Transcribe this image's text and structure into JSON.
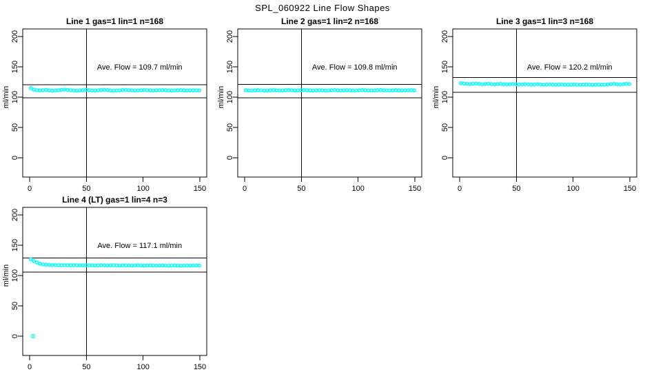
{
  "page_title": "SPL_060922  Line Flow Shapes",
  "colors": {
    "points": "#00ffff",
    "axis": "#000000",
    "text": "#000000",
    "background": "#ffffff"
  },
  "axes": {
    "xlim": [
      0,
      150
    ],
    "ylim": [
      0,
      200
    ],
    "x_ticks": [
      0,
      50,
      100,
      150
    ],
    "y_ticks": [
      0,
      50,
      100,
      150,
      200
    ],
    "y_label": "ml/min",
    "vline_x": 50,
    "grid": "off",
    "legend": "none"
  },
  "chart_data": [
    {
      "type": "scatter",
      "title": "Line 1 gas=1 lin=1 n=168",
      "ave_flow_text": "Ave. Flow =  109.7  ml/min",
      "ave_flow": 109.7,
      "ref_lines": [
        120.7,
        98.7
      ],
      "x_start": 1,
      "x_step": 2.7,
      "values": [
        115,
        112.5,
        111.5,
        111,
        111.5,
        112,
        111.2,
        110.6,
        111,
        111.5,
        112,
        112.4,
        112,
        111.5,
        111,
        110.6,
        111,
        111.4,
        112,
        111.6,
        111,
        110.8,
        111.2,
        111.8,
        112.2,
        111.6,
        111,
        110.5,
        110.8,
        111.3,
        111.8,
        112,
        111.6,
        111.2,
        110.8,
        111,
        111.4,
        111.8,
        111.5,
        111.2,
        110.9,
        111.1,
        111.5,
        111.8,
        111.4,
        111,
        110.7,
        111,
        111.3,
        111.6,
        111.2,
        110.9,
        111.1,
        111.4,
        111.2,
        111
      ],
      "extra_points": []
    },
    {
      "type": "scatter",
      "title": "Line 2 gas=1 lin=2 n=168",
      "ave_flow_text": "Ave. Flow =  109.8  ml/min",
      "ave_flow": 109.8,
      "ref_lines": [
        120.8,
        98.8
      ],
      "x_start": 1,
      "x_step": 2.7,
      "values": [
        111.5,
        111,
        110.8,
        111.2,
        111.6,
        111,
        110.6,
        110.9,
        111.3,
        111.7,
        111.2,
        110.8,
        111,
        111.4,
        111.8,
        111.3,
        110.9,
        111.1,
        111.5,
        111.9,
        111.4,
        111,
        110.7,
        111.1,
        111.5,
        111.2,
        110.8,
        111,
        111.4,
        111.7,
        111.3,
        110.9,
        111.2,
        111.6,
        111.1,
        110.8,
        111,
        111.3,
        111.7,
        111.4,
        111,
        110.8,
        111.1,
        111.5,
        111.8,
        111.3,
        111,
        110.9,
        111.2,
        111.6,
        111.2,
        110.9,
        111.1,
        111.4,
        111.6,
        111.2
      ],
      "extra_points": []
    },
    {
      "type": "scatter",
      "title": "Line 3 gas=1 lin=3 n=168",
      "ave_flow_text": "Ave. Flow =  120.2  ml/min",
      "ave_flow": 120.2,
      "ref_lines": [
        132.2,
        108.2
      ],
      "x_start": 1,
      "x_step": 2.7,
      "values": [
        123,
        122.5,
        122,
        121.6,
        122,
        122.4,
        121.8,
        121.3,
        121.7,
        122.1,
        121.6,
        121.2,
        121.5,
        121.9,
        121.4,
        121,
        121.3,
        121.7,
        121.2,
        120.8,
        121.1,
        121.5,
        121,
        120.7,
        121,
        121.4,
        120.9,
        120.6,
        120.9,
        121.3,
        120.8,
        120.5,
        120.8,
        121.2,
        120.7,
        120.4,
        120.7,
        121.1,
        120.6,
        120.3,
        120.6,
        121,
        120.5,
        120.2,
        120.5,
        120.9,
        120.4,
        120.6,
        121,
        121.4,
        121.8,
        121.2,
        120.8,
        121.4,
        122,
        121.6
      ],
      "extra_points": []
    },
    {
      "type": "scatter",
      "title": "Line 4 (LT) gas=1 lin=4 n=3",
      "ave_flow_text": "Ave. Flow =  117.1  ml/min",
      "ave_flow": 117.1,
      "ref_lines": [
        128.8,
        105.4
      ],
      "x_start": 1,
      "x_step": 2.7,
      "values": [
        127,
        124,
        121.5,
        119.5,
        118.5,
        118,
        117.6,
        117.3,
        117.5,
        117.2,
        117,
        117.3,
        117.1,
        116.8,
        117,
        117.2,
        116.9,
        116.7,
        117,
        117.2,
        116.8,
        116.6,
        116.9,
        117.1,
        116.8,
        116.5,
        116.8,
        117,
        116.7,
        116.5,
        116.7,
        116.9,
        116.6,
        116.4,
        116.7,
        116.9,
        116.5,
        116.3,
        116.6,
        116.8,
        116.5,
        116.3,
        116.5,
        116.7,
        116.4,
        116.2,
        116.5,
        116.7,
        116.4,
        116.2,
        116.4,
        116.6,
        116.3,
        116.5,
        116.8,
        116.6
      ],
      "extra_points": [
        [
          3,
          0
        ]
      ]
    }
  ]
}
